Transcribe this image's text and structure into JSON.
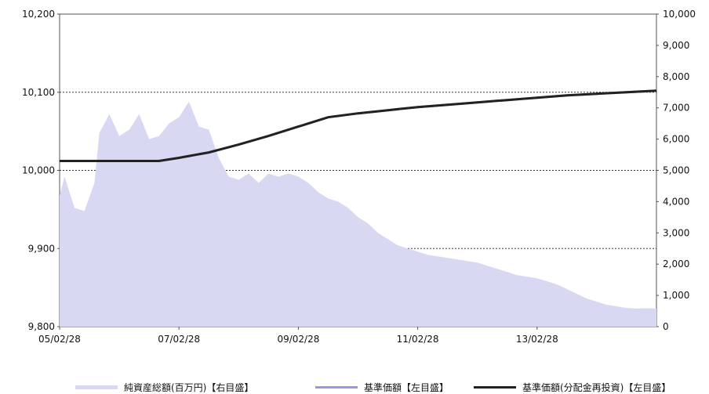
{
  "chart_data": {
    "type": "line",
    "x_ticks": [
      "05/02/28",
      "07/02/28",
      "09/02/28",
      "11/02/28",
      "13/02/28"
    ],
    "x_range": [
      "2005/02/28",
      "2015/02/28"
    ],
    "y_left": {
      "ticks": [
        "9,800",
        "9,900",
        "10,000",
        "10,100",
        "10,200"
      ],
      "range": [
        9800,
        10200
      ]
    },
    "y_right": {
      "ticks": [
        "0",
        "1,000",
        "2,000",
        "3,000",
        "4,000",
        "5,000",
        "6,000",
        "7,000",
        "8,000",
        "9,000",
        "10,000"
      ],
      "range": [
        0,
        10000
      ]
    },
    "reference_lines_left": [
      10100,
      10000,
      9900
    ],
    "series": [
      {
        "name": "純資産総額(百万円)【右目盛】",
        "kind": "area",
        "axis": "right",
        "color": "#d8d8f3",
        "x": [
          "2005/02",
          "2005/03",
          "2005/05",
          "2005/07",
          "2005/09",
          "2005/10",
          "2005/12",
          "2006/02",
          "2006/04",
          "2006/06",
          "2006/08",
          "2006/10",
          "2006/12",
          "2007/02",
          "2007/04",
          "2007/06",
          "2007/08",
          "2007/10",
          "2007/12",
          "2008/02",
          "2008/04",
          "2008/06",
          "2008/08",
          "2008/10",
          "2008/12",
          "2009/02",
          "2009/04",
          "2009/06",
          "2009/08",
          "2009/10",
          "2009/12",
          "2010/02",
          "2010/04",
          "2010/06",
          "2010/08",
          "2010/10",
          "2010/12",
          "2011/02",
          "2011/04",
          "2011/06",
          "2011/08",
          "2011/10",
          "2011/12",
          "2012/02",
          "2012/04",
          "2012/06",
          "2012/08",
          "2012/10",
          "2012/12",
          "2013/02",
          "2013/04",
          "2013/06",
          "2013/08",
          "2013/10",
          "2013/12",
          "2014/02",
          "2014/04",
          "2014/06",
          "2014/08",
          "2014/10",
          "2014/12",
          "2015/02"
        ],
        "values": [
          4200,
          4800,
          3800,
          3700,
          4600,
          6200,
          6800,
          6100,
          6300,
          6800,
          6000,
          6100,
          6500,
          6700,
          7200,
          6400,
          6300,
          5400,
          4800,
          4700,
          4900,
          4600,
          4900,
          4800,
          4900,
          4800,
          4600,
          4300,
          4100,
          4000,
          3800,
          3500,
          3300,
          3000,
          2800,
          2600,
          2500,
          2400,
          2300,
          2250,
          2200,
          2150,
          2100,
          2050,
          1950,
          1850,
          1750,
          1650,
          1600,
          1550,
          1450,
          1350,
          1200,
          1050,
          900,
          800,
          700,
          650,
          600,
          580,
          590,
          580
        ]
      },
      {
        "name": "基準価額【左目盛】",
        "kind": "line",
        "axis": "left",
        "color": "#9a97e0",
        "x": [
          "2005/02",
          "2006/02",
          "2006/10",
          "2007/02",
          "2007/08",
          "2008/02",
          "2008/08",
          "2009/02",
          "2009/08",
          "2010/02",
          "2010/08",
          "2011/02",
          "2011/08",
          "2012/02",
          "2012/08",
          "2013/02",
          "2013/08",
          "2014/02",
          "2014/08",
          "2015/02"
        ],
        "values": [
          10012,
          10012,
          10012,
          10016,
          10023,
          10033,
          10044,
          10056,
          10068,
          10073,
          10077,
          10081,
          10084,
          10087,
          10090,
          10093,
          10096,
          10098,
          10100,
          10102
        ]
      },
      {
        "name": "基準価額(分配金再投資)【左目盛】",
        "kind": "line",
        "axis": "left",
        "color": "#222222",
        "x": [
          "2005/02",
          "2006/02",
          "2006/10",
          "2007/02",
          "2007/08",
          "2008/02",
          "2008/08",
          "2009/02",
          "2009/08",
          "2010/02",
          "2010/08",
          "2011/02",
          "2011/08",
          "2012/02",
          "2012/08",
          "2013/02",
          "2013/08",
          "2014/02",
          "2014/08",
          "2015/02"
        ],
        "values": [
          10012,
          10012,
          10012,
          10016,
          10023,
          10033,
          10044,
          10056,
          10068,
          10073,
          10077,
          10081,
          10084,
          10087,
          10090,
          10093,
          10096,
          10098,
          10100,
          10102
        ]
      }
    ],
    "legend_position": "bottom"
  }
}
